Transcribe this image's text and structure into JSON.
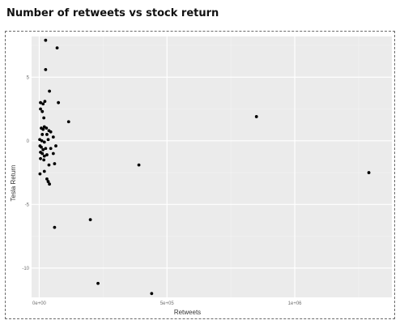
{
  "title": "Number of retweets vs stock return",
  "chart_data": {
    "type": "scatter",
    "title": "Number of retweets vs stock return",
    "xlabel": "Retweets",
    "ylabel": "Tesla Return",
    "xlim": [
      -30000,
      1380000
    ],
    "ylim": [
      -12.3,
      8.2
    ],
    "x_ticks": [
      0,
      500000,
      1000000
    ],
    "x_tick_labels": [
      "0e+00",
      "5e+05",
      "1e+06"
    ],
    "y_ticks": [
      5,
      0,
      -5,
      -10
    ],
    "y_tick_labels": [
      "5",
      "0",
      "-5",
      "-10"
    ],
    "grid": true,
    "panel_color": "#ebebeb",
    "point_color": "#000000",
    "points": [
      {
        "x": 25000,
        "y": 7.9
      },
      {
        "x": 70000,
        "y": 7.3
      },
      {
        "x": 25000,
        "y": 5.6
      },
      {
        "x": 40000,
        "y": 3.9
      },
      {
        "x": 5000,
        "y": 3.0
      },
      {
        "x": 15000,
        "y": 2.9
      },
      {
        "x": 22000,
        "y": 3.1
      },
      {
        "x": 75000,
        "y": 3.0
      },
      {
        "x": 5000,
        "y": 2.5
      },
      {
        "x": 12000,
        "y": 2.3
      },
      {
        "x": 18000,
        "y": 1.8
      },
      {
        "x": 115000,
        "y": 1.5
      },
      {
        "x": 8000,
        "y": 1.0
      },
      {
        "x": 15000,
        "y": 0.9
      },
      {
        "x": 20000,
        "y": 1.1
      },
      {
        "x": 28000,
        "y": 1.0
      },
      {
        "x": 38000,
        "y": 0.8
      },
      {
        "x": 45000,
        "y": 0.7
      },
      {
        "x": 12000,
        "y": 0.5
      },
      {
        "x": 30000,
        "y": 0.5
      },
      {
        "x": 55000,
        "y": 0.3
      },
      {
        "x": 2000,
        "y": 0.1
      },
      {
        "x": 10000,
        "y": 0.0
      },
      {
        "x": 20000,
        "y": -0.1
      },
      {
        "x": 35000,
        "y": 0.1
      },
      {
        "x": 3000,
        "y": -0.4
      },
      {
        "x": 8000,
        "y": -0.5
      },
      {
        "x": 15000,
        "y": -0.7
      },
      {
        "x": 25000,
        "y": -0.6
      },
      {
        "x": 45000,
        "y": -0.6
      },
      {
        "x": 65000,
        "y": -0.4
      },
      {
        "x": 5000,
        "y": -0.9
      },
      {
        "x": 12000,
        "y": -1.0
      },
      {
        "x": 20000,
        "y": -1.2
      },
      {
        "x": 30000,
        "y": -1.1
      },
      {
        "x": 55000,
        "y": -1.0
      },
      {
        "x": 5000,
        "y": -1.4
      },
      {
        "x": 18000,
        "y": -1.5
      },
      {
        "x": 38000,
        "y": -1.9
      },
      {
        "x": 60000,
        "y": -1.8
      },
      {
        "x": 3000,
        "y": -2.6
      },
      {
        "x": 20000,
        "y": -2.4
      },
      {
        "x": 30000,
        "y": -3.0
      },
      {
        "x": 35000,
        "y": -3.2
      },
      {
        "x": 40000,
        "y": -3.4
      },
      {
        "x": 390000,
        "y": -1.9
      },
      {
        "x": 850000,
        "y": 1.9
      },
      {
        "x": 1290000,
        "y": -2.5
      },
      {
        "x": 200000,
        "y": -6.2
      },
      {
        "x": 60000,
        "y": -6.8
      },
      {
        "x": 230000,
        "y": -11.2
      },
      {
        "x": 440000,
        "y": -12.0
      }
    ]
  }
}
